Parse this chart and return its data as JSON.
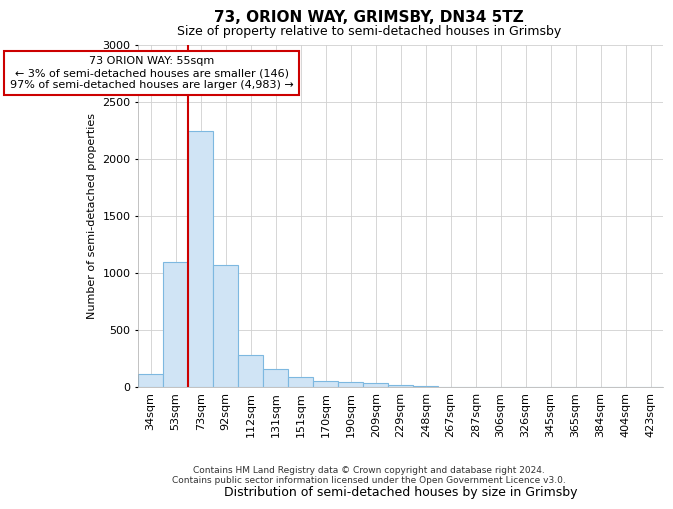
{
  "title": "73, ORION WAY, GRIMSBY, DN34 5TZ",
  "subtitle": "Size of property relative to semi-detached houses in Grimsby",
  "xlabel": "Distribution of semi-detached houses by size in Grimsby",
  "ylabel": "Number of semi-detached properties",
  "categories": [
    "34sqm",
    "53sqm",
    "73sqm",
    "92sqm",
    "112sqm",
    "131sqm",
    "151sqm",
    "170sqm",
    "190sqm",
    "209sqm",
    "229sqm",
    "248sqm",
    "267sqm",
    "287sqm",
    "306sqm",
    "326sqm",
    "345sqm",
    "365sqm",
    "384sqm",
    "404sqm",
    "423sqm"
  ],
  "values": [
    115,
    1100,
    2250,
    1070,
    285,
    160,
    90,
    55,
    45,
    35,
    25,
    10,
    5,
    1,
    1,
    1,
    1,
    1,
    1,
    1,
    1
  ],
  "bar_color": "#d0e4f5",
  "bar_edge_color": "#7db8e0",
  "annotation_title": "73 ORION WAY: 55sqm",
  "annotation_line1": "← 3% of semi-detached houses are smaller (146)",
  "annotation_line2": "97% of semi-detached houses are larger (4,983) →",
  "red_line_after_index": 1,
  "ylim": [
    0,
    3000
  ],
  "yticks": [
    0,
    500,
    1000,
    1500,
    2000,
    2500,
    3000
  ],
  "footer1": "Contains HM Land Registry data © Crown copyright and database right 2024.",
  "footer2": "Contains public sector information licensed under the Open Government Licence v3.0.",
  "grid_color": "#d0d0d0"
}
